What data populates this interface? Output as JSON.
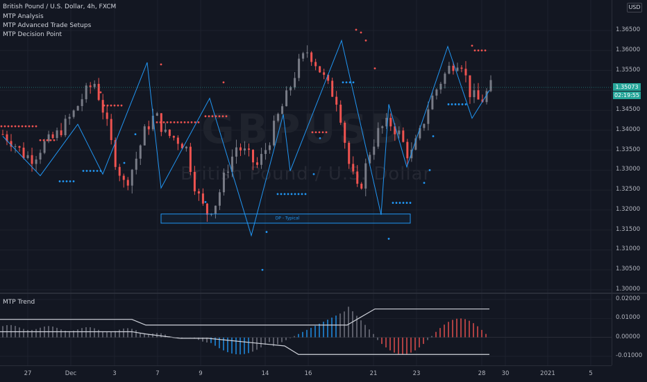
{
  "legend": {
    "symbol_line": "British Pound / U.S. Dollar, 4h, FXCM",
    "studies": [
      "MTP Analysis",
      "MTP Advanced Trade Setups",
      "MTP Decision Point"
    ]
  },
  "watermark": {
    "symbol": "GBPUSD",
    "description": "British Pound / U.S. Dollar"
  },
  "currency_badge": "USD",
  "price_axis": {
    "labels": [
      "1.36500",
      "1.36000",
      "1.35500",
      "1.35000",
      "1.34500",
      "1.34000",
      "1.33500",
      "1.33000",
      "1.32500",
      "1.32000",
      "1.31500",
      "1.31000",
      "1.30500",
      "1.30000"
    ],
    "last_price": "1.35073",
    "countdown": "02:19:55"
  },
  "indicator_pane": {
    "title": "MTP Trend",
    "axis_labels": [
      "0.02000",
      "0.01000",
      "0.00000",
      "-0.01000"
    ]
  },
  "time_axis": {
    "labels": [
      "27",
      "Dec",
      "3",
      "7",
      "9",
      "14",
      "16",
      "21",
      "23",
      "28",
      "30",
      "2021",
      "5"
    ]
  },
  "dp_box": {
    "label": "DP - Typical"
  },
  "colors": {
    "bull": "#787b86",
    "bear": "#ef5350",
    "zigzag": "#2196f3",
    "dots_sell": "#ef5350",
    "dots_buy": "#2196f3",
    "last_price": "#26a69a",
    "histo_up": "#2196f3",
    "histo_neutral": "#787b86",
    "histo_down": "#ef5350"
  },
  "chart_data": {
    "type": "line",
    "title": "British Pound / U.S. Dollar, 4h, FXCM",
    "y_range": [
      1.297,
      1.3685
    ],
    "price_close_sample": [
      1.339,
      1.337,
      1.334,
      1.333,
      1.3365,
      1.338,
      1.341,
      1.3445,
      1.349,
      1.352,
      1.344,
      1.333,
      1.326,
      1.332,
      1.34,
      1.344,
      1.339,
      1.338,
      1.336,
      1.325,
      1.319,
      1.322,
      1.33,
      1.336,
      1.334,
      1.331,
      1.336,
      1.343,
      1.349,
      1.356,
      1.36,
      1.356,
      1.351,
      1.347,
      1.332,
      1.324,
      1.334,
      1.34,
      1.342,
      1.339,
      1.333,
      1.339,
      1.347,
      1.352,
      1.356,
      1.358,
      1.349,
      1.347,
      1.351
    ],
    "indicator_range": [
      -0.013,
      0.022
    ]
  }
}
